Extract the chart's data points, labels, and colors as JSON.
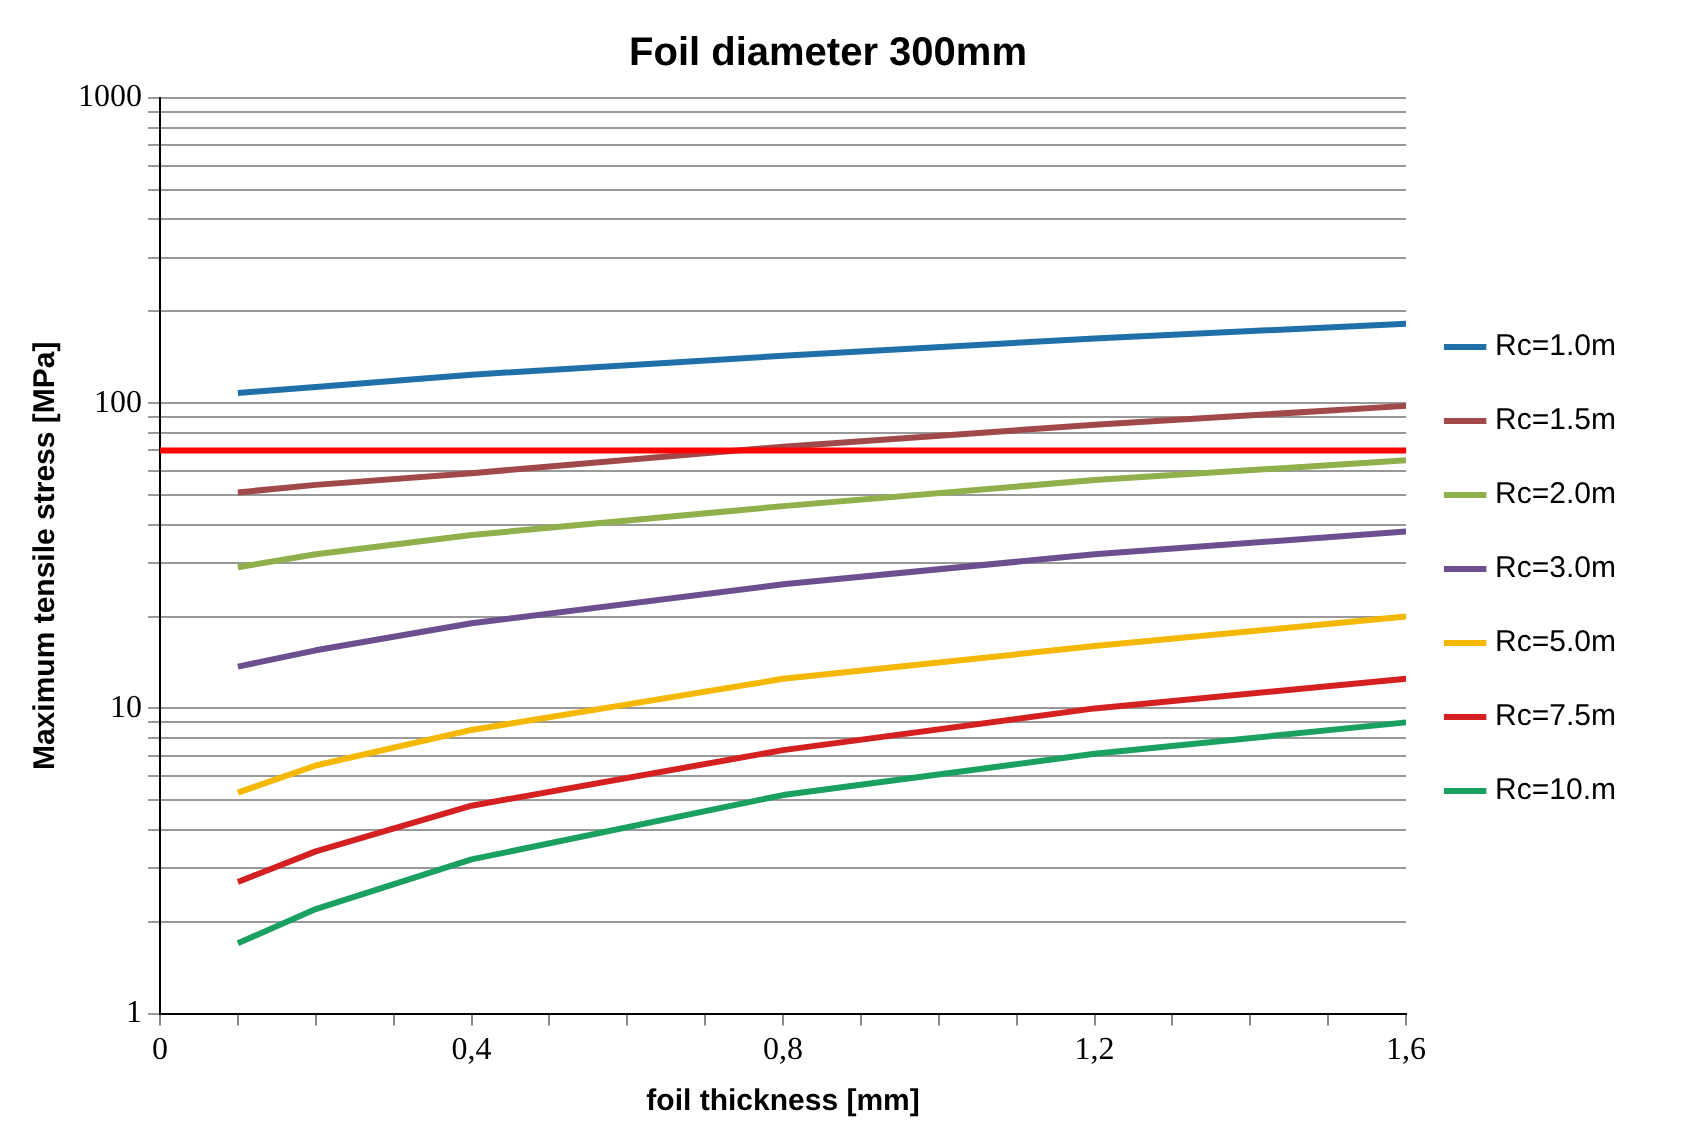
{
  "chart_data": {
    "type": "line",
    "title": "Foil diameter 300mm",
    "xlabel": "foil thickness [mm]",
    "ylabel": "Maximum tensile stress [MPa]",
    "x": [
      0.1,
      0.2,
      0.4,
      0.8,
      1.2,
      1.6
    ],
    "series": [
      {
        "name": "Rc=1.0m",
        "color": "#1f6fa8",
        "values": [
          108,
          113,
          124,
          143,
          163,
          182
        ]
      },
      {
        "name": "Rc=1.5m",
        "color": "#a0484a",
        "values": [
          51,
          54,
          59,
          72,
          85,
          98
        ]
      },
      {
        "name": "Rc=2.0m",
        "color": "#8fb04a",
        "values": [
          29,
          32,
          37,
          46,
          56,
          65
        ]
      },
      {
        "name": "Rc=3.0m",
        "color": "#6b4f8f",
        "values": [
          13.7,
          15.5,
          19,
          25.5,
          32,
          38
        ]
      },
      {
        "name": "Rc=5.0m",
        "color": "#f5b800",
        "values": [
          5.3,
          6.5,
          8.5,
          12.5,
          16,
          20
        ]
      },
      {
        "name": "Rc=7.5m",
        "color": "#d42020",
        "values": [
          2.7,
          3.4,
          4.8,
          7.3,
          10,
          12.5
        ]
      },
      {
        "name": "Rc=10.m",
        "color": "#1aa060",
        "values": [
          1.7,
          2.2,
          3.2,
          5.2,
          7.1,
          9
        ]
      }
    ],
    "xlim": [
      0,
      1.6
    ],
    "xticks": [
      0,
      {
        "value": 0.1,
        "label": null
      },
      {
        "value": 0.2,
        "label": null
      },
      {
        "value": 0.3,
        "label": null
      },
      {
        "value": 0.4,
        "label": "0,4"
      },
      {
        "value": 0.5,
        "label": null
      },
      {
        "value": 0.6,
        "label": null
      },
      {
        "value": 0.7,
        "label": null
      },
      {
        "value": 0.8,
        "label": "0,8"
      },
      {
        "value": 0.9,
        "label": null
      },
      {
        "value": 1.0,
        "label": null
      },
      {
        "value": 1.1,
        "label": null
      },
      {
        "value": 1.2,
        "label": "1,2"
      },
      {
        "value": 1.3,
        "label": null
      },
      {
        "value": 1.4,
        "label": null
      },
      {
        "value": 1.5,
        "label": null
      },
      {
        "value": 1.6,
        "label": "1,6"
      }
    ],
    "ylim": [
      1,
      1000
    ],
    "yticks": [
      1,
      {
        "value": 2,
        "label": null
      },
      {
        "value": 3,
        "label": null
      },
      {
        "value": 4,
        "label": null
      },
      {
        "value": 5,
        "label": null
      },
      {
        "value": 6,
        "label": null
      },
      {
        "value": 7,
        "label": null
      },
      {
        "value": 8,
        "label": null
      },
      {
        "value": 9,
        "label": null
      },
      10,
      {
        "value": 20,
        "label": null
      },
      {
        "value": 30,
        "label": null
      },
      {
        "value": 40,
        "label": null
      },
      {
        "value": 50,
        "label": null
      },
      {
        "value": 60,
        "label": null
      },
      {
        "value": 70,
        "label": null
      },
      {
        "value": 80,
        "label": null
      },
      {
        "value": 90,
        "label": null
      },
      100,
      {
        "value": 200,
        "label": null
      },
      {
        "value": 300,
        "label": null
      },
      {
        "value": 400,
        "label": null
      },
      {
        "value": 500,
        "label": null
      },
      {
        "value": 600,
        "label": null
      },
      {
        "value": 700,
        "label": null
      },
      {
        "value": 800,
        "label": null
      },
      {
        "value": 900,
        "label": null
      },
      1000
    ],
    "log": "y",
    "grid": "y",
    "legend": "right",
    "marker": "none",
    "line_style": "solid",
    "ref_lines": [
      {
        "axis": "y",
        "value": 70,
        "color": "#ff0000"
      }
    ]
  }
}
